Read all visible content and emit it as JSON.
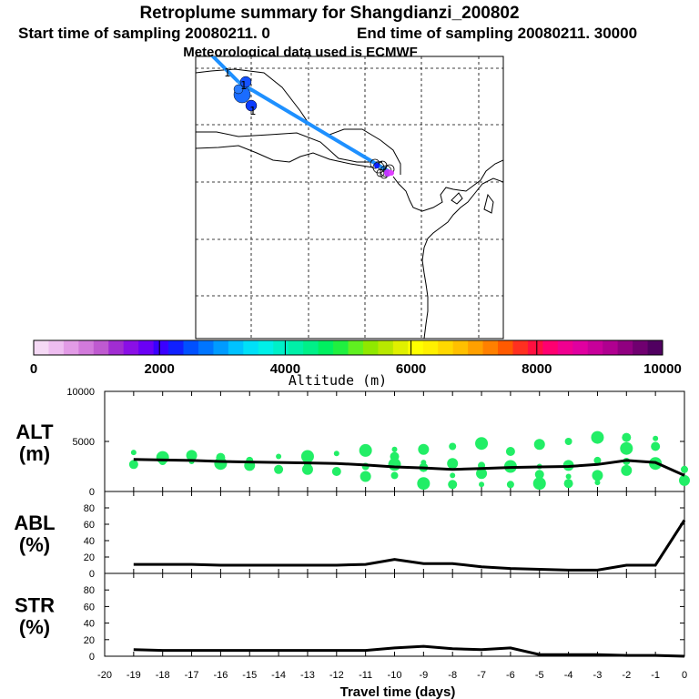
{
  "chart_data": {
    "type": "composite",
    "title": "Retroplume summary for Shangdianzi_200802",
    "subtitle_start": "Start time of sampling 20080211.    0",
    "subtitle_end": "End time of sampling 20080211. 30000",
    "subtitle_met": "Meteorological data used is ECMWF",
    "map": {
      "trajectory_color": "#1e90ff",
      "labels": [
        "1",
        "1",
        "1"
      ]
    },
    "colorbar": {
      "xlabel": "Altitude (m)",
      "tick_labels": [
        "0",
        "2000",
        "4000",
        "6000",
        "8000",
        "10000"
      ],
      "range": [
        0,
        10000
      ],
      "colors": [
        "#f5d9f5",
        "#eebdf0",
        "#e29be6",
        "#d27adb",
        "#bf5ad0",
        "#a12dd2",
        "#8a0fe6",
        "#6a00f5",
        "#3a00ff",
        "#1020ff",
        "#0050ff",
        "#0075ff",
        "#009bff",
        "#00c2ff",
        "#00e0f8",
        "#00f0e8",
        "#00f0c8",
        "#00f0a8",
        "#00f088",
        "#00f060",
        "#20f040",
        "#60f020",
        "#90e800",
        "#b8e800",
        "#e0f000",
        "#ffff00",
        "#fff000",
        "#ffd800",
        "#ffc000",
        "#ffa000",
        "#ff8000",
        "#ff5a00",
        "#ff3020",
        "#ff1040",
        "#ff0070",
        "#f00090",
        "#e000a0",
        "#c8009a",
        "#b00090",
        "#900080",
        "#700070",
        "#500060"
      ]
    },
    "x": [
      -19,
      -18,
      -17,
      -16,
      -15,
      -14,
      -13,
      -12,
      -11,
      -10,
      -9,
      -8,
      -7,
      -6,
      -5,
      -4,
      -3,
      -2,
      -1,
      0
    ],
    "xlabel": "Travel time (days)",
    "xlim": [
      -20,
      0
    ],
    "x_tick_labels": [
      "-20",
      "-19",
      "-18",
      "-17",
      "-16",
      "-15",
      "-14",
      "-13",
      "-12",
      "-11",
      "-10",
      "-9",
      "-8",
      "-7",
      "-6",
      "-5",
      "-4",
      "-3",
      "-2",
      "-1",
      "0"
    ],
    "panels": [
      {
        "name": "ALT",
        "ylabel_top": "ALT",
        "ylabel_bottom": "(m)",
        "ylim": [
          0,
          10000
        ],
        "y_ticks": [
          0,
          5000,
          10000
        ],
        "y_tick_labels": [
          "0",
          "5000",
          "10000"
        ],
        "series_mean": [
          3200,
          3150,
          3100,
          3000,
          2950,
          2900,
          2850,
          2800,
          2650,
          2450,
          2350,
          2200,
          2300,
          2400,
          2450,
          2500,
          2700,
          3100,
          2900,
          1600
        ],
        "scatter_color": "#22ee66",
        "scatter": [
          {
            "x": -19,
            "y": 3900
          },
          {
            "x": -19,
            "y": 2700
          },
          {
            "x": -18,
            "y": 3400
          },
          {
            "x": -18,
            "y": 3000
          },
          {
            "x": -17,
            "y": 3600
          },
          {
            "x": -17,
            "y": 3000
          },
          {
            "x": -16,
            "y": 3400
          },
          {
            "x": -16,
            "y": 2800
          },
          {
            "x": -15,
            "y": 3100
          },
          {
            "x": -15,
            "y": 2600
          },
          {
            "x": -14,
            "y": 3500
          },
          {
            "x": -14,
            "y": 2200
          },
          {
            "x": -13,
            "y": 3500
          },
          {
            "x": -13,
            "y": 2700
          },
          {
            "x": -13,
            "y": 2200
          },
          {
            "x": -12,
            "y": 3800
          },
          {
            "x": -12,
            "y": 2000
          },
          {
            "x": -11,
            "y": 4100
          },
          {
            "x": -11,
            "y": 2500
          },
          {
            "x": -11,
            "y": 1500
          },
          {
            "x": -10,
            "y": 4200
          },
          {
            "x": -10,
            "y": 3500
          },
          {
            "x": -10,
            "y": 2700
          },
          {
            "x": -10,
            "y": 1600
          },
          {
            "x": -9,
            "y": 4200
          },
          {
            "x": -9,
            "y": 2900
          },
          {
            "x": -9,
            "y": 2400
          },
          {
            "x": -9,
            "y": 800
          },
          {
            "x": -8,
            "y": 4500
          },
          {
            "x": -8,
            "y": 2800
          },
          {
            "x": -8,
            "y": 1600
          },
          {
            "x": -8,
            "y": 700
          },
          {
            "x": -7,
            "y": 4800
          },
          {
            "x": -7,
            "y": 2600
          },
          {
            "x": -7,
            "y": 1800
          },
          {
            "x": -7,
            "y": 700
          },
          {
            "x": -6,
            "y": 4000
          },
          {
            "x": -6,
            "y": 2500
          },
          {
            "x": -6,
            "y": 700
          },
          {
            "x": -5,
            "y": 4700
          },
          {
            "x": -5,
            "y": 2500
          },
          {
            "x": -5,
            "y": 1700
          },
          {
            "x": -5,
            "y": 800
          },
          {
            "x": -4,
            "y": 5000
          },
          {
            "x": -4,
            "y": 2600
          },
          {
            "x": -4,
            "y": 1500
          },
          {
            "x": -4,
            "y": 800
          },
          {
            "x": -3,
            "y": 5400
          },
          {
            "x": -3,
            "y": 3100
          },
          {
            "x": -3,
            "y": 1600
          },
          {
            "x": -3,
            "y": 900
          },
          {
            "x": -2,
            "y": 5400
          },
          {
            "x": -2,
            "y": 4300
          },
          {
            "x": -2,
            "y": 3000
          },
          {
            "x": -2,
            "y": 2100
          },
          {
            "x": -1,
            "y": 5300
          },
          {
            "x": -1,
            "y": 4500
          },
          {
            "x": -1,
            "y": 2800
          },
          {
            "x": 0,
            "y": 2200
          },
          {
            "x": 0,
            "y": 1100
          }
        ]
      },
      {
        "name": "ABL",
        "ylabel_top": "ABL",
        "ylabel_bottom": "(%)",
        "ylim": [
          0,
          100
        ],
        "y_ticks": [
          0,
          20,
          40,
          60,
          80
        ],
        "y_tick_labels": [
          "0",
          "20",
          "40",
          "60",
          "80"
        ],
        "series_mean": [
          11,
          11,
          11,
          10,
          10,
          10,
          10,
          10,
          11,
          17,
          12,
          12,
          8,
          6,
          5,
          4,
          4,
          10,
          10,
          65
        ]
      },
      {
        "name": "STR",
        "ylabel_top": "STR",
        "ylabel_bottom": "(%)",
        "ylim": [
          0,
          100
        ],
        "y_ticks": [
          0,
          20,
          40,
          60,
          80
        ],
        "y_tick_labels": [
          "0",
          "20",
          "40",
          "60",
          "80"
        ],
        "series_mean": [
          8,
          7,
          7,
          7,
          7,
          7,
          7,
          7,
          7,
          10,
          12,
          9,
          8,
          10,
          2,
          2,
          2,
          1,
          1,
          0
        ]
      }
    ]
  }
}
